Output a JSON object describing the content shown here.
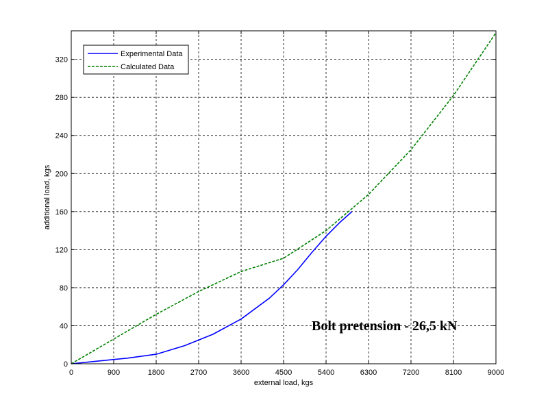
{
  "chart_data": {
    "type": "line",
    "title": "",
    "xlabel": "external load, kgs",
    "ylabel": "additional load, kgs",
    "xlim": [
      0,
      9000
    ],
    "ylim": [
      0,
      350
    ],
    "x_ticks": [
      0,
      900,
      1800,
      2700,
      3600,
      4500,
      5400,
      6300,
      7200,
      8100,
      9000
    ],
    "y_ticks": [
      0,
      40,
      80,
      120,
      160,
      200,
      240,
      280,
      320
    ],
    "grid": true,
    "legend_position": "top-left",
    "annotation": "Bolt pretension - 26,5 kN",
    "series": [
      {
        "name": "Experimental Data",
        "color": "#0000ff",
        "style": "solid",
        "x": [
          0,
          600,
          1200,
          1800,
          2400,
          3000,
          3600,
          4200,
          4500,
          4800,
          5100,
          5400,
          5700,
          5950
        ],
        "y": [
          0,
          3,
          6,
          10,
          19,
          31,
          47,
          69,
          83,
          99,
          117,
          134,
          149,
          160
        ]
      },
      {
        "name": "Calculated Data",
        "color": "#008000",
        "style": "dashed",
        "x": [
          0,
          900,
          1800,
          2700,
          3600,
          4500,
          5400,
          6300,
          7200,
          8100,
          9000
        ],
        "y": [
          0,
          26,
          52,
          76,
          97,
          111,
          140,
          178,
          225,
          282,
          348
        ]
      }
    ]
  }
}
